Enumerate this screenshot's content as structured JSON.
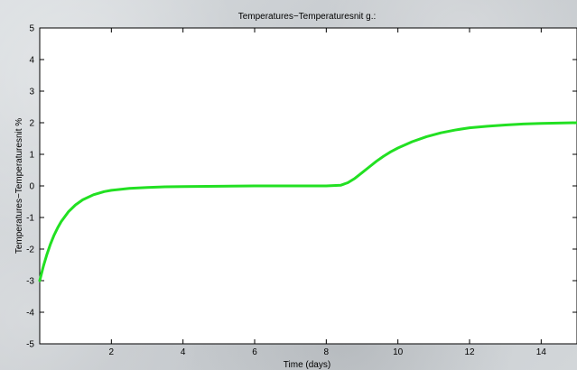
{
  "chart_data": {
    "type": "line",
    "title": "Temperatures−Temperaturesnit g.:",
    "xlabel": "Time (days)",
    "ylabel": "Temperatures−Temperaturesnit %",
    "xlim": [
      0,
      15
    ],
    "ylim": [
      -5,
      5
    ],
    "xticks": [
      2,
      4,
      6,
      8,
      10,
      12,
      14
    ],
    "yticks": [
      -5,
      -4,
      -3,
      -2,
      -1,
      0,
      1,
      2,
      3,
      4,
      5
    ],
    "grid": false,
    "series": [
      {
        "color": "#22e022",
        "x": [
          0,
          0.1,
          0.2,
          0.3,
          0.4,
          0.5,
          0.6,
          0.8,
          1.0,
          1.2,
          1.5,
          1.8,
          2.0,
          2.5,
          3.0,
          3.5,
          4.0,
          5.0,
          6.0,
          7.0,
          8.0,
          8.4,
          8.6,
          8.8,
          9.0,
          9.2,
          9.4,
          9.6,
          9.8,
          10.0,
          10.4,
          10.8,
          11.2,
          11.6,
          12.0,
          12.5,
          13.0,
          13.5,
          14.0,
          15.0
        ],
        "y": [
          -3.0,
          -2.55,
          -2.17,
          -1.84,
          -1.56,
          -1.33,
          -1.13,
          -0.82,
          -0.6,
          -0.44,
          -0.28,
          -0.18,
          -0.14,
          -0.08,
          -0.05,
          -0.03,
          -0.02,
          -0.01,
          0.0,
          0.0,
          0.0,
          0.02,
          0.1,
          0.24,
          0.42,
          0.6,
          0.78,
          0.94,
          1.08,
          1.2,
          1.4,
          1.56,
          1.68,
          1.77,
          1.84,
          1.89,
          1.93,
          1.96,
          1.98,
          2.0
        ]
      }
    ]
  }
}
